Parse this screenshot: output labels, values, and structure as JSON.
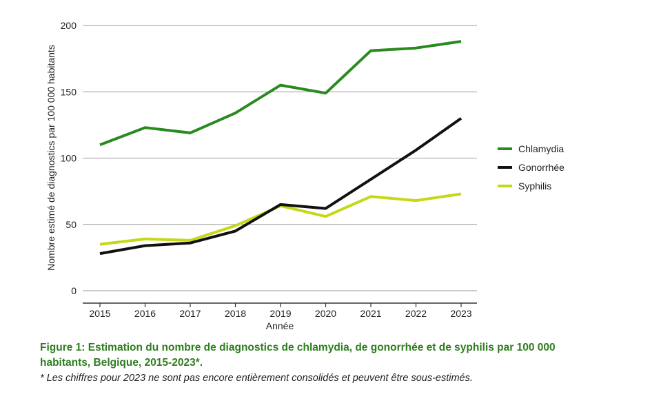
{
  "chart_data": {
    "type": "line",
    "x": [
      2015,
      2016,
      2017,
      2018,
      2019,
      2020,
      2021,
      2022,
      2023
    ],
    "series": [
      {
        "name": "Chlamydia",
        "color": "#2a8a20",
        "values": [
          110,
          123,
          119,
          134,
          155,
          149,
          181,
          183,
          188
        ]
      },
      {
        "name": "Gonorrhée",
        "color": "#111111",
        "values": [
          28,
          34,
          36,
          45,
          65,
          62,
          84,
          106,
          130
        ]
      },
      {
        "name": "Syphilis",
        "color": "#c4d816",
        "values": [
          35,
          39,
          38,
          49,
          64,
          56,
          71,
          68,
          73
        ]
      }
    ],
    "yticks": [
      0,
      50,
      100,
      150,
      200
    ],
    "ylim": [
      0,
      200
    ],
    "xlabel": "Année",
    "ylabel": "Nombre estimé de diagnostics par 100 000 habitants",
    "grid": true,
    "legend_position": "right"
  },
  "caption": {
    "title": "Figure 1: Estimation du nombre de diagnostics de chlamydia, de gonorrhée et de syphilis par 100 000 habitants, Belgique, 2015-2023*.",
    "note": "* Les chiffres pour 2023 ne sont pas encore entièrement consolidés et peuvent être sous-estimés."
  }
}
